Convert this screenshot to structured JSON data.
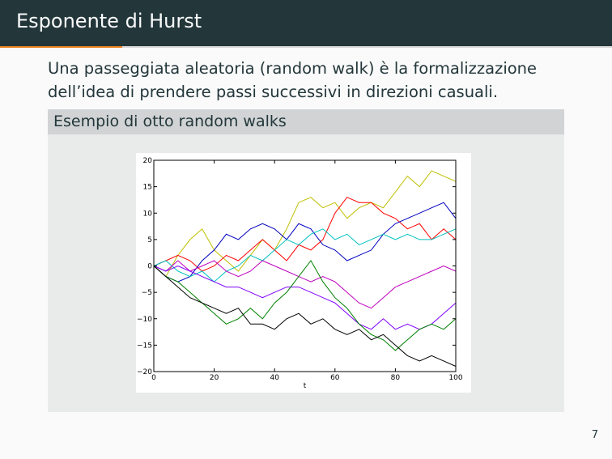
{
  "slide": {
    "title": "Esponente di Hurst",
    "intro_text": "Una passeggiata aleatoria (random walk) è la formalizzazione dell’idea di prendere passi successivi in direzioni ",
    "intro_emph": "casuali",
    "intro_end": ".",
    "block_title": "Esempio di otto random walks",
    "page_number": "7"
  },
  "chart_data": {
    "type": "line",
    "title": "",
    "xlabel": "t",
    "ylabel": "",
    "xlim": [
      0,
      100
    ],
    "ylim": [
      -20,
      20
    ],
    "xticks": [
      "0",
      "20",
      "40",
      "60",
      "80",
      "100"
    ],
    "yticks": [
      "−20",
      "−15",
      "−10",
      "−5",
      "0",
      "5",
      "10",
      "15",
      "20"
    ],
    "grid": false,
    "series": [
      {
        "color": "#bfbf00",
        "x": [
          0,
          4,
          8,
          12,
          16,
          20,
          24,
          28,
          32,
          36,
          40,
          44,
          48,
          52,
          56,
          60,
          64,
          68,
          72,
          76,
          80,
          84,
          88,
          92,
          96,
          100
        ],
        "y": [
          0,
          -2,
          2,
          5,
          7,
          3,
          1,
          -1,
          2,
          5,
          3,
          7,
          12,
          13,
          11,
          12,
          9,
          11,
          12,
          11,
          14,
          17,
          15,
          18,
          17,
          16
        ]
      },
      {
        "color": "#ff0000",
        "x": [
          0,
          4,
          8,
          12,
          16,
          20,
          24,
          28,
          32,
          36,
          40,
          44,
          48,
          52,
          56,
          60,
          64,
          68,
          72,
          76,
          80,
          84,
          88,
          92,
          96,
          100
        ],
        "y": [
          0,
          1,
          2,
          1,
          -1,
          0,
          2,
          1,
          3,
          5,
          3,
          1,
          4,
          3,
          5,
          10,
          13,
          12,
          12,
          10,
          9,
          7,
          8,
          5,
          7,
          5
        ]
      },
      {
        "color": "#0000bf",
        "x": [
          0,
          4,
          8,
          12,
          16,
          20,
          24,
          28,
          32,
          36,
          40,
          44,
          48,
          52,
          56,
          60,
          64,
          68,
          72,
          76,
          80,
          84,
          88,
          92,
          96,
          100
        ],
        "y": [
          0,
          -2,
          -3,
          -2,
          1,
          3,
          6,
          5,
          7,
          8,
          7,
          5,
          8,
          7,
          4,
          3,
          1,
          2,
          3,
          6,
          8,
          9,
          10,
          11,
          12,
          9
        ]
      },
      {
        "color": "#00bfbf",
        "x": [
          0,
          4,
          8,
          12,
          16,
          20,
          24,
          28,
          32,
          36,
          40,
          44,
          48,
          52,
          56,
          60,
          64,
          68,
          72,
          76,
          80,
          84,
          88,
          92,
          96,
          100
        ],
        "y": [
          0,
          1,
          -1,
          -2,
          -1,
          -3,
          -1,
          0,
          2,
          1,
          3,
          5,
          4,
          6,
          7,
          5,
          6,
          4,
          5,
          6,
          5,
          6,
          5,
          5,
          6,
          7
        ]
      },
      {
        "color": "#bf00bf",
        "x": [
          0,
          4,
          8,
          12,
          16,
          20,
          24,
          28,
          32,
          36,
          40,
          44,
          48,
          52,
          56,
          60,
          64,
          68,
          72,
          76,
          80,
          84,
          88,
          92,
          96,
          100
        ],
        "y": [
          0,
          -1,
          1,
          -1,
          0,
          1,
          -1,
          -2,
          -1,
          1,
          0,
          -1,
          -2,
          -3,
          -2,
          -3,
          -5,
          -7,
          -8,
          -6,
          -4,
          -3,
          -2,
          -1,
          0,
          -1
        ]
      },
      {
        "color": "#7f00ff",
        "x": [
          0,
          4,
          8,
          12,
          16,
          20,
          24,
          28,
          32,
          36,
          40,
          44,
          48,
          52,
          56,
          60,
          64,
          68,
          72,
          76,
          80,
          84,
          88,
          92,
          96,
          100
        ],
        "y": [
          0,
          -1,
          0,
          -1,
          -2,
          -3,
          -4,
          -4,
          -5,
          -6,
          -5,
          -4,
          -4,
          -5,
          -6,
          -7,
          -9,
          -11,
          -12,
          -10,
          -12,
          -11,
          -12,
          -11,
          -9,
          -7
        ]
      },
      {
        "color": "#008000",
        "x": [
          0,
          4,
          8,
          12,
          16,
          20,
          24,
          28,
          32,
          36,
          40,
          44,
          48,
          52,
          56,
          60,
          64,
          68,
          72,
          76,
          80,
          84,
          88,
          92,
          96,
          100
        ],
        "y": [
          0,
          -2,
          -3,
          -5,
          -7,
          -9,
          -11,
          -10,
          -8,
          -10,
          -7,
          -5,
          -2,
          1,
          -3,
          -6,
          -8,
          -11,
          -13,
          -14,
          -16,
          -14,
          -12,
          -11,
          -12,
          -10
        ]
      },
      {
        "color": "#000000",
        "x": [
          0,
          4,
          8,
          12,
          16,
          20,
          24,
          28,
          32,
          36,
          40,
          44,
          48,
          52,
          56,
          60,
          64,
          68,
          72,
          76,
          80,
          84,
          88,
          92,
          96,
          100
        ],
        "y": [
          0,
          -2,
          -4,
          -6,
          -7,
          -8,
          -9,
          -8,
          -11,
          -11,
          -12,
          -10,
          -9,
          -11,
          -10,
          -12,
          -13,
          -12,
          -14,
          -13,
          -15,
          -17,
          -18,
          -17,
          -18,
          -19
        ]
      }
    ]
  }
}
